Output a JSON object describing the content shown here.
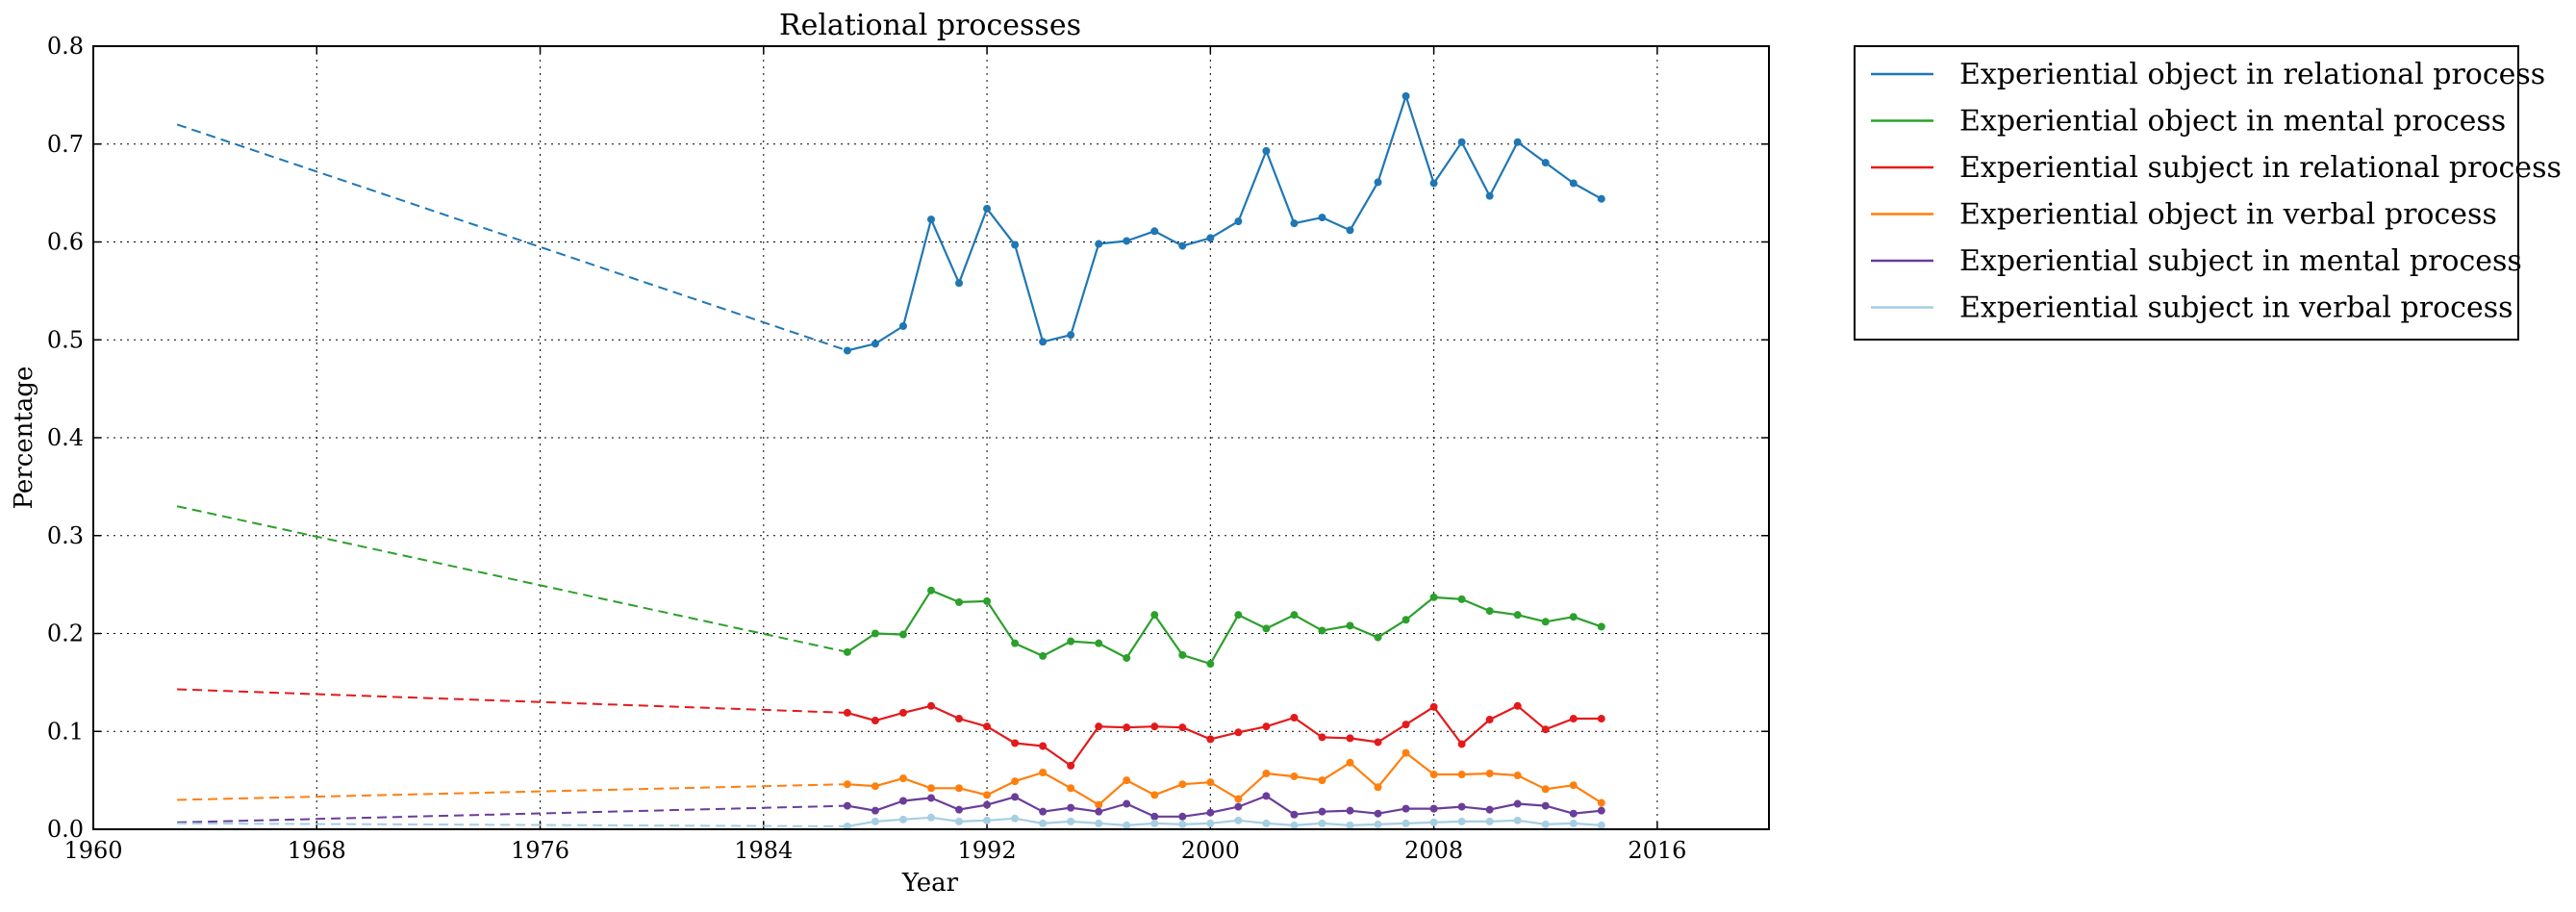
{
  "chart_data": {
    "type": "line",
    "title": "Relational processes",
    "xlabel": "Year",
    "ylabel": "Percentage",
    "xlim": [
      1960,
      2020
    ],
    "ylim": [
      0.0,
      0.8
    ],
    "xticks": [
      1960,
      1968,
      1976,
      1984,
      1992,
      2000,
      2008,
      2016
    ],
    "xtick_labels": [
      "1960",
      "1968",
      "1976",
      "1984",
      "1992",
      "2000",
      "2008",
      "2016"
    ],
    "yticks": [
      0.0,
      0.1,
      0.2,
      0.3,
      0.4,
      0.5,
      0.6,
      0.7,
      0.8
    ],
    "ytick_labels": [
      "0.0",
      "0.1",
      "0.2",
      "0.3",
      "0.4",
      "0.5",
      "0.6",
      "0.7",
      "0.8"
    ],
    "grid": true,
    "legend_position": "outside-right-top",
    "x": [
      1987,
      1988,
      1989,
      1990,
      1991,
      1992,
      1993,
      1994,
      1995,
      1996,
      1997,
      1998,
      1999,
      2000,
      2001,
      2002,
      2003,
      2004,
      2005,
      2006,
      2007,
      2008,
      2009,
      2010,
      2011,
      2012,
      2013,
      2014
    ],
    "series": [
      {
        "name": "Experiential object in relational process",
        "color": "#1f77b4",
        "values": [
          0.489,
          0.496,
          0.514,
          0.623,
          0.558,
          0.634,
          0.597,
          0.498,
          0.505,
          0.598,
          0.601,
          0.611,
          0.596,
          0.604,
          0.621,
          0.693,
          0.619,
          0.625,
          0.612,
          0.661,
          0.749,
          0.66,
          0.702,
          0.647,
          0.702,
          0.681,
          0.66,
          0.644
        ],
        "trend": {
          "x": [
            1963,
            1987
          ],
          "y": [
            0.72,
            0.489
          ]
        }
      },
      {
        "name": "Experiential object in mental process",
        "color": "#2ca02c",
        "values": [
          0.181,
          0.2,
          0.199,
          0.244,
          0.232,
          0.233,
          0.19,
          0.177,
          0.192,
          0.19,
          0.175,
          0.219,
          0.178,
          0.169,
          0.219,
          0.205,
          0.219,
          0.203,
          0.208,
          0.196,
          0.214,
          0.237,
          0.235,
          0.223,
          0.219,
          0.212,
          0.217,
          0.207
        ],
        "trend": {
          "x": [
            1963,
            1987
          ],
          "y": [
            0.33,
            0.181
          ]
        }
      },
      {
        "name": "Experiential subject in relational process",
        "color": "#e31a1c",
        "values": [
          0.119,
          0.111,
          0.119,
          0.126,
          0.113,
          0.105,
          0.088,
          0.085,
          0.065,
          0.105,
          0.104,
          0.105,
          0.104,
          0.092,
          0.099,
          0.105,
          0.114,
          0.094,
          0.093,
          0.089,
          0.107,
          0.125,
          0.087,
          0.112,
          0.126,
          0.102,
          0.113,
          0.113
        ],
        "trend": {
          "x": [
            1963,
            1987
          ],
          "y": [
            0.143,
            0.119
          ]
        }
      },
      {
        "name": "Experiential object in verbal process",
        "color": "#ff7f0e",
        "values": [
          0.046,
          0.044,
          0.052,
          0.042,
          0.042,
          0.035,
          0.049,
          0.058,
          0.042,
          0.025,
          0.05,
          0.035,
          0.046,
          0.048,
          0.031,
          0.057,
          0.054,
          0.05,
          0.068,
          0.043,
          0.078,
          0.056,
          0.056,
          0.057,
          0.055,
          0.041,
          0.045,
          0.027
        ],
        "trend": {
          "x": [
            1963,
            1987
          ],
          "y": [
            0.03,
            0.046
          ]
        }
      },
      {
        "name": "Experiential subject in mental process",
        "color": "#6a3d9a",
        "values": [
          0.024,
          0.019,
          0.029,
          0.032,
          0.02,
          0.025,
          0.033,
          0.018,
          0.022,
          0.018,
          0.026,
          0.013,
          0.013,
          0.017,
          0.023,
          0.034,
          0.015,
          0.018,
          0.019,
          0.016,
          0.021,
          0.021,
          0.023,
          0.02,
          0.026,
          0.024,
          0.016,
          0.019
        ],
        "trend": {
          "x": [
            1963,
            1987
          ],
          "y": [
            0.007,
            0.024
          ]
        }
      },
      {
        "name": "Experiential subject in verbal process",
        "color": "#a6cee3",
        "values": [
          0.003,
          0.008,
          0.01,
          0.012,
          0.008,
          0.009,
          0.011,
          0.006,
          0.008,
          0.006,
          0.004,
          0.006,
          0.005,
          0.006,
          0.009,
          0.006,
          0.004,
          0.006,
          0.004,
          0.005,
          0.006,
          0.007,
          0.008,
          0.008,
          0.009,
          0.005,
          0.006,
          0.004
        ],
        "trend": {
          "x": [
            1963,
            1987
          ],
          "y": [
            0.006,
            0.003
          ]
        }
      }
    ]
  }
}
